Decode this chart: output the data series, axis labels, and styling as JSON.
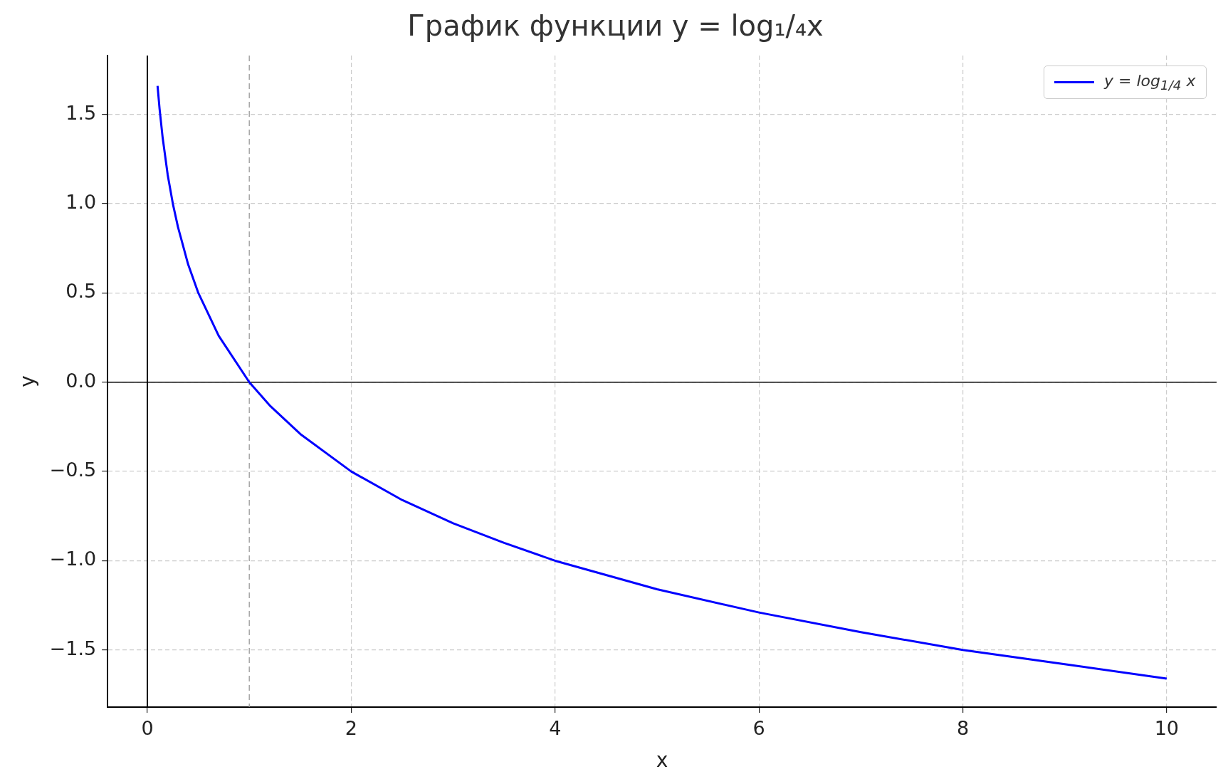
{
  "chart_data": {
    "type": "line",
    "title": "График функции y = log₁/₄x",
    "xlabel": "x",
    "ylabel": "y",
    "x": [
      0.1,
      0.12,
      0.15,
      0.2,
      0.25,
      0.3,
      0.4,
      0.5,
      0.7,
      1,
      1.2,
      1.5,
      2,
      2.5,
      3,
      3.5,
      4,
      5,
      6,
      7,
      8,
      9,
      10
    ],
    "series": [
      {
        "name": "y = log$_{1/4}$ x",
        "color": "#0000ff",
        "values": [
          1.66,
          1.53,
          1.37,
          1.16,
          1.0,
          0.87,
          0.66,
          0.5,
          0.26,
          0,
          -0.13,
          -0.29,
          -0.5,
          -0.66,
          -0.79,
          -0.9,
          -1,
          -1.16,
          -1.29,
          -1.4,
          -1.5,
          -1.58,
          -1.66
        ]
      }
    ],
    "xlim": [
      -0.39,
      10.49
    ],
    "ylim": [
      -1.82,
      1.83
    ],
    "xticks": [
      0,
      2,
      4,
      6,
      8,
      10
    ],
    "yticks": [
      {
        "value": -1.5,
        "label": "−1.5"
      },
      {
        "value": -1,
        "label": "−1.0"
      },
      {
        "value": -0.5,
        "label": "−0.5"
      },
      {
        "value": 0,
        "label": "0.0"
      },
      0.5,
      {
        "value": 1,
        "label": "1.0"
      },
      1.5
    ],
    "grid": true,
    "legend": "top right",
    "ref_lines": [
      {
        "axis": "x",
        "value": 0,
        "color": "#000000",
        "line_style": "solid"
      },
      {
        "axis": "y",
        "value": 0,
        "color": "#000000",
        "line_style": "solid"
      },
      {
        "axis": "x",
        "value": 1,
        "color": "#999999",
        "line_style": "dashed"
      }
    ]
  }
}
